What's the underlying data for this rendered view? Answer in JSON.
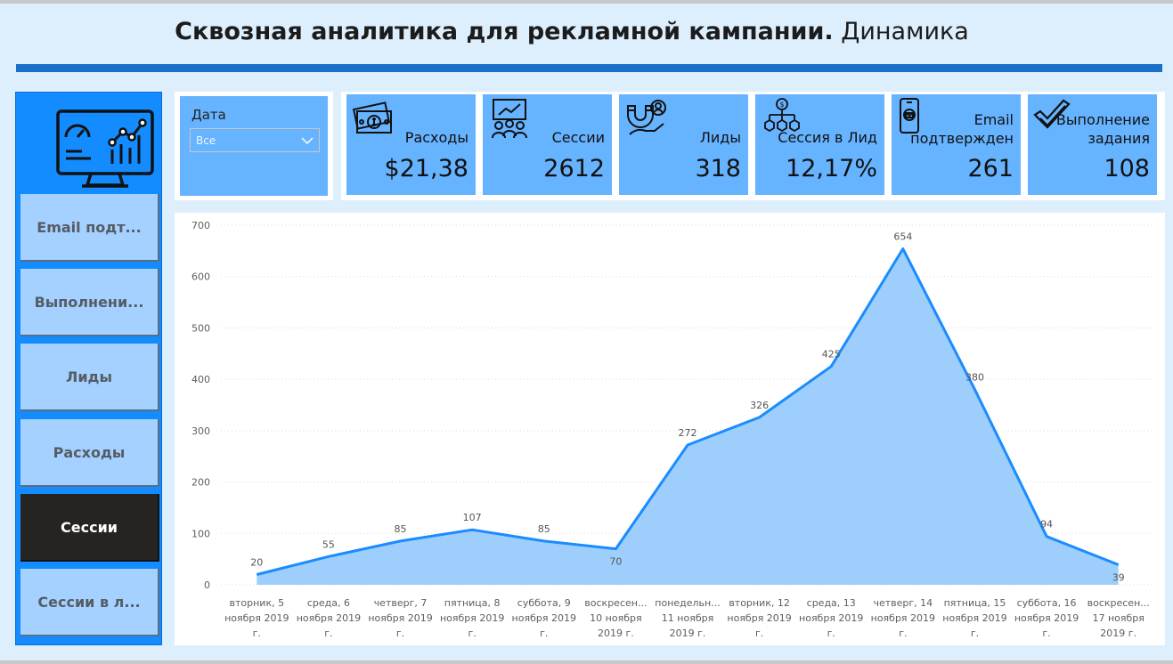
{
  "header": {
    "title_bold": "Сквозная аналитика для рекламной кампании.",
    "title_normal": "Динамика"
  },
  "sidebar": {
    "logo_icon": "monitor-analytics-icon",
    "items": [
      {
        "label": "Email подт...",
        "active": false
      },
      {
        "label": "Выполнени...",
        "active": false
      },
      {
        "label": "Лиды",
        "active": false
      },
      {
        "label": "Расходы",
        "active": false
      },
      {
        "label": "Сессии",
        "active": true
      },
      {
        "label": "Сессии в л...",
        "active": false
      }
    ]
  },
  "filter": {
    "label": "Дата",
    "value": "Все"
  },
  "kpis": [
    {
      "label": "Расходы",
      "value": "$21,38",
      "icon": "money-icon"
    },
    {
      "label": "Сессии",
      "value": "2612",
      "icon": "group-presentation-icon"
    },
    {
      "label": "Лиды",
      "value": "318",
      "icon": "magnet-lead-icon"
    },
    {
      "label": "Сессия в Лид",
      "value": "12,17%",
      "icon": "hierarchy-coins-icon"
    },
    {
      "label": "Email подтвержден",
      "label_lines": [
        "Email",
        "подтвержден"
      ],
      "value": "261",
      "icon": "phone-mail-icon"
    },
    {
      "label": "Выполнение задания",
      "label_lines": [
        "Выполнение",
        "задания"
      ],
      "value": "108",
      "icon": "double-check-icon"
    }
  ],
  "colors": {
    "accent": "#1a8cff",
    "area_fill": "#9ecffc",
    "card": "#66b3ff",
    "sidebar": "#138cff",
    "nav_button": "#a4d1ff",
    "nav_active": "#252423"
  },
  "chart_data": {
    "type": "area",
    "title": "",
    "xlabel": "",
    "ylabel": "",
    "ylim": [
      0,
      700
    ],
    "yticks": [
      0,
      100,
      200,
      300,
      400,
      500,
      600,
      700
    ],
    "grid": true,
    "categories": [
      [
        "вторник, 5",
        "ноября 2019",
        "г."
      ],
      [
        "среда, 6",
        "ноября 2019",
        "г."
      ],
      [
        "четверг, 7",
        "ноября 2019",
        "г."
      ],
      [
        "пятница, 8",
        "ноября 2019",
        "г."
      ],
      [
        "суббота, 9",
        "ноября 2019",
        "г."
      ],
      [
        "воскресен...",
        "10 ноября",
        "2019 г."
      ],
      [
        "понедельн...",
        "11 ноября",
        "2019 г."
      ],
      [
        "вторник, 12",
        "ноября 2019",
        "г."
      ],
      [
        "среда, 13",
        "ноября 2019",
        "г."
      ],
      [
        "четверг, 14",
        "ноября 2019",
        "г."
      ],
      [
        "пятница, 15",
        "ноября 2019",
        "г."
      ],
      [
        "суббота, 16",
        "ноября 2019",
        "г."
      ],
      [
        "воскресен...",
        "17 ноября",
        "2019 г."
      ]
    ],
    "values": [
      20,
      55,
      85,
      107,
      85,
      70,
      272,
      326,
      425,
      654,
      380,
      94,
      39
    ]
  }
}
